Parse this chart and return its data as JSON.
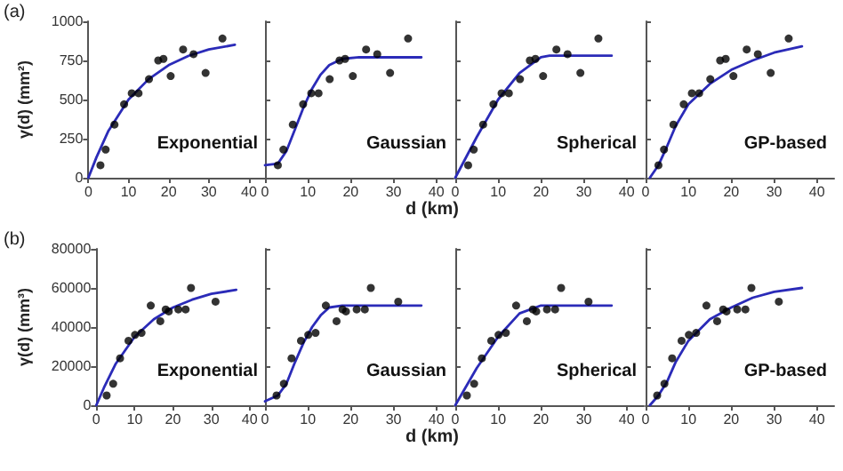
{
  "chart_data": [
    {
      "type": "scatter",
      "title": "(a)",
      "ylabel": "γ(d) (mm²)",
      "annotations": [
        "Exponential"
      ],
      "xlim": [
        0,
        44
      ],
      "xticks": [
        0,
        10,
        20,
        30,
        40
      ],
      "ylim": [
        0,
        1000
      ],
      "yticks": [
        0,
        250,
        500,
        750,
        1000
      ],
      "marker": "circle",
      "grid": false,
      "series": [
        {
          "color": "#000000",
          "x": [
            3.0,
            4.3,
            6.5,
            8.9,
            10.8,
            12.5,
            15.1,
            17.4,
            18.7,
            20.5,
            23.6,
            26.2,
            29.2,
            33.4
          ],
          "values": [
            80,
            180,
            340,
            470,
            540,
            540,
            630,
            750,
            760,
            650,
            820,
            790,
            670,
            890
          ]
        },
        {
          "type": "line",
          "color": "#2b2bb8",
          "marker": "none",
          "line_style": "solid",
          "x": [
            0,
            2,
            5,
            10,
            15,
            20,
            25,
            30,
            36.5
          ],
          "values": [
            0,
            130,
            300,
            500,
            630,
            720,
            780,
            820,
            850
          ]
        }
      ]
    },
    {
      "type": "scatter",
      "xlabel": "d (km)",
      "annotations": [
        "Gaussian"
      ],
      "xlim": [
        0,
        44
      ],
      "xticks": [
        0,
        10,
        20,
        30,
        40
      ],
      "ylim": [
        0,
        1000
      ],
      "yticks": [
        0,
        250,
        500,
        750,
        1000
      ],
      "tick_labels": "x",
      "marker": "circle",
      "grid": false,
      "series": [
        {
          "color": "#000000",
          "x": [
            3.0,
            4.3,
            6.5,
            8.9,
            10.8,
            12.5,
            15.1,
            17.4,
            18.7,
            20.5,
            23.6,
            26.2,
            29.2,
            33.4
          ],
          "values": [
            80,
            180,
            340,
            470,
            540,
            540,
            630,
            750,
            760,
            650,
            820,
            790,
            670,
            890
          ]
        },
        {
          "type": "line",
          "color": "#2b2bb8",
          "marker": "none",
          "line_style": "solid",
          "x": [
            0,
            3,
            5,
            7,
            9,
            11,
            13,
            15,
            18,
            22,
            30,
            36.5
          ],
          "values": [
            80,
            90,
            170,
            310,
            450,
            570,
            660,
            720,
            760,
            770,
            770,
            770
          ]
        }
      ]
    },
    {
      "type": "scatter",
      "annotations": [
        "Spherical"
      ],
      "xlim": [
        0,
        44
      ],
      "xticks": [
        0,
        10,
        20,
        30,
        40
      ],
      "ylim": [
        0,
        1000
      ],
      "yticks": [
        0,
        250,
        500,
        750,
        1000
      ],
      "tick_labels": "x",
      "marker": "circle",
      "grid": false,
      "series": [
        {
          "color": "#000000",
          "x": [
            3.0,
            4.3,
            6.5,
            8.9,
            10.8,
            12.5,
            15.1,
            17.4,
            18.7,
            20.5,
            23.6,
            26.2,
            29.2,
            33.4
          ],
          "values": [
            80,
            180,
            340,
            470,
            540,
            540,
            630,
            750,
            760,
            650,
            820,
            790,
            670,
            890
          ]
        },
        {
          "type": "line",
          "color": "#2b2bb8",
          "marker": "none",
          "line_style": "solid",
          "x": [
            0,
            5,
            10,
            15,
            20,
            22,
            36.5
          ],
          "values": [
            0,
            260,
            500,
            670,
            770,
            780,
            780
          ]
        }
      ]
    },
    {
      "type": "scatter",
      "annotations": [
        "GP-based"
      ],
      "xlim": [
        0,
        44
      ],
      "xticks": [
        0,
        10,
        20,
        30,
        40
      ],
      "ylim": [
        0,
        1000
      ],
      "yticks": [
        0,
        250,
        500,
        750,
        1000
      ],
      "tick_labels": "x",
      "marker": "circle",
      "grid": false,
      "series": [
        {
          "color": "#000000",
          "x": [
            3.0,
            4.3,
            6.5,
            8.9,
            10.8,
            12.5,
            15.1,
            17.4,
            18.7,
            20.5,
            23.6,
            26.2,
            29.2,
            33.4
          ],
          "values": [
            80,
            180,
            340,
            470,
            540,
            540,
            630,
            750,
            760,
            650,
            820,
            790,
            670,
            890
          ]
        },
        {
          "type": "line",
          "color": "#2b2bb8",
          "marker": "none",
          "line_style": "solid",
          "x": [
            1,
            3,
            5,
            7,
            10,
            15,
            20,
            25,
            30,
            36.5
          ],
          "values": [
            0,
            80,
            200,
            330,
            470,
            600,
            690,
            750,
            800,
            840
          ]
        }
      ]
    },
    {
      "type": "scatter",
      "title": "(b)",
      "ylabel": "γ(d) (mm³)",
      "annotations": [
        "Exponential"
      ],
      "xlim": [
        0,
        44
      ],
      "xticks": [
        0,
        10,
        20,
        30,
        40
      ],
      "ylim": [
        0,
        80000
      ],
      "yticks": [
        0,
        20000,
        40000,
        60000,
        80000
      ],
      "marker": "circle",
      "grid": false,
      "series": [
        {
          "color": "#000000",
          "x": [
            2.7,
            4.4,
            6.2,
            8.4,
            10.1,
            11.8,
            14.2,
            16.7,
            18.1,
            18.9,
            21.4,
            23.3,
            24.7,
            31.1
          ],
          "values": [
            5000,
            11000,
            24000,
            33000,
            36000,
            37000,
            51000,
            43000,
            49000,
            48000,
            49000,
            49000,
            60000,
            53000
          ]
        },
        {
          "type": "line",
          "color": "#2b2bb8",
          "marker": "none",
          "line_style": "solid",
          "x": [
            0,
            2,
            5,
            10,
            15,
            20,
            25,
            30,
            36.5
          ],
          "values": [
            0,
            9000,
            21000,
            35000,
            44000,
            50000,
            54000,
            57000,
            59000
          ]
        }
      ]
    },
    {
      "type": "scatter",
      "xlabel": "d (km)",
      "annotations": [
        "Gaussian"
      ],
      "xlim": [
        0,
        44
      ],
      "xticks": [
        0,
        10,
        20,
        30,
        40
      ],
      "ylim": [
        0,
        80000
      ],
      "yticks": [
        0,
        20000,
        40000,
        60000,
        80000
      ],
      "tick_labels": "x",
      "marker": "circle",
      "grid": false,
      "series": [
        {
          "color": "#000000",
          "x": [
            2.7,
            4.4,
            6.2,
            8.4,
            10.1,
            11.8,
            14.2,
            16.7,
            18.1,
            18.9,
            21.4,
            23.3,
            24.7,
            31.1
          ],
          "values": [
            5000,
            11000,
            24000,
            33000,
            36000,
            37000,
            51000,
            43000,
            49000,
            48000,
            49000,
            49000,
            60000,
            53000
          ]
        },
        {
          "type": "line",
          "color": "#2b2bb8",
          "marker": "none",
          "line_style": "solid",
          "x": [
            0,
            3,
            5,
            7,
            9,
            11,
            13,
            15,
            18,
            22,
            36.5
          ],
          "values": [
            2000,
            5000,
            11000,
            22000,
            32000,
            40000,
            46000,
            50000,
            51000,
            51000,
            51000
          ]
        }
      ]
    },
    {
      "type": "scatter",
      "annotations": [
        "Spherical"
      ],
      "xlim": [
        0,
        44
      ],
      "xticks": [
        0,
        10,
        20,
        30,
        40
      ],
      "ylim": [
        0,
        80000
      ],
      "yticks": [
        0,
        20000,
        40000,
        60000,
        80000
      ],
      "tick_labels": "x",
      "marker": "circle",
      "grid": false,
      "series": [
        {
          "color": "#000000",
          "x": [
            2.7,
            4.4,
            6.2,
            8.4,
            10.1,
            11.8,
            14.2,
            16.7,
            18.1,
            18.9,
            21.4,
            23.3,
            24.7,
            31.1
          ],
          "values": [
            5000,
            11000,
            24000,
            33000,
            36000,
            37000,
            51000,
            43000,
            49000,
            48000,
            49000,
            49000,
            60000,
            53000
          ]
        },
        {
          "type": "line",
          "color": "#2b2bb8",
          "marker": "none",
          "line_style": "solid",
          "x": [
            0,
            5,
            10,
            15,
            20,
            36.5
          ],
          "values": [
            0,
            19000,
            35000,
            47000,
            51000,
            51000
          ]
        }
      ]
    },
    {
      "type": "scatter",
      "annotations": [
        "GP-based"
      ],
      "xlim": [
        0,
        44
      ],
      "xticks": [
        0,
        10,
        20,
        30,
        40
      ],
      "ylim": [
        0,
        80000
      ],
      "yticks": [
        0,
        20000,
        40000,
        60000,
        80000
      ],
      "tick_labels": "x",
      "marker": "circle",
      "grid": false,
      "series": [
        {
          "color": "#000000",
          "x": [
            2.7,
            4.4,
            6.2,
            8.4,
            10.1,
            11.8,
            14.2,
            16.7,
            18.1,
            18.9,
            21.4,
            23.3,
            24.7,
            31.1
          ],
          "values": [
            5000,
            11000,
            24000,
            33000,
            36000,
            37000,
            51000,
            43000,
            49000,
            48000,
            49000,
            49000,
            60000,
            53000
          ]
        },
        {
          "type": "line",
          "color": "#2b2bb8",
          "marker": "none",
          "line_style": "solid",
          "x": [
            1,
            3,
            5,
            7,
            10,
            15,
            20,
            25,
            30,
            36.5
          ],
          "values": [
            0,
            5000,
            12000,
            22000,
            33000,
            44000,
            50000,
            55000,
            58000,
            60000
          ]
        }
      ]
    }
  ]
}
